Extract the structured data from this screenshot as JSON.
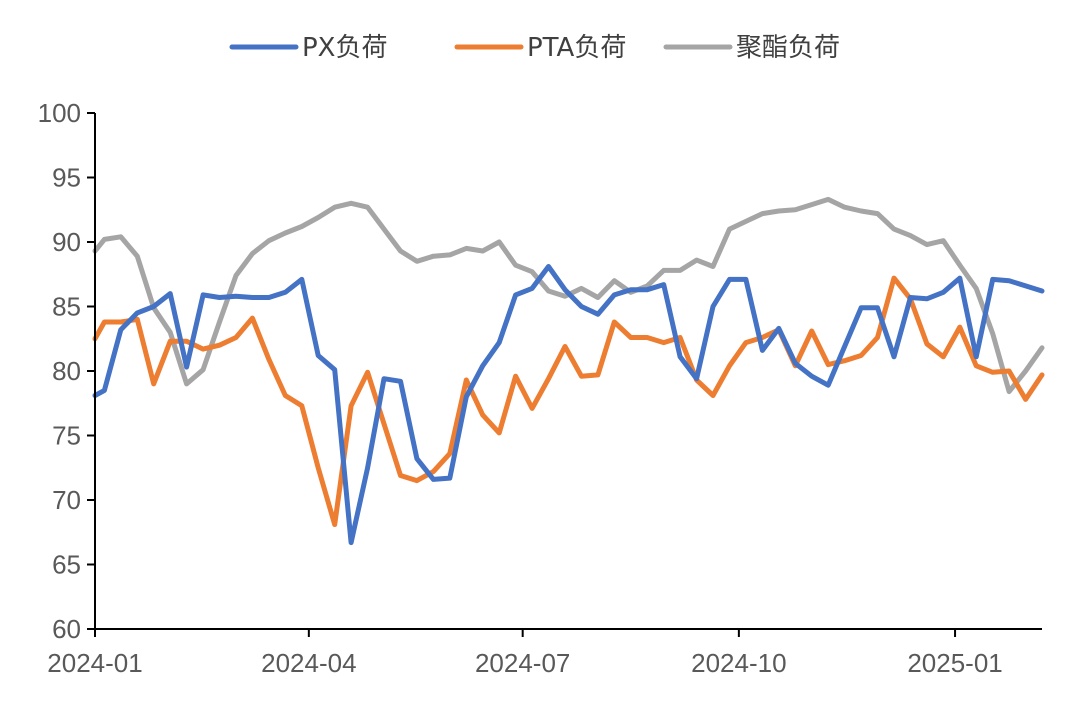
{
  "chart_data": {
    "type": "line",
    "title": "",
    "xlabel": "",
    "ylabel": "",
    "ylim": [
      60,
      100
    ],
    "yticks": [
      60,
      65,
      70,
      75,
      80,
      85,
      90,
      95,
      100
    ],
    "xlim": [
      "2024-01-01",
      "2025-02-07"
    ],
    "xticks": [
      "2024-01",
      "2024-04",
      "2024-07",
      "2024-10",
      "2025-01"
    ],
    "grid": false,
    "legend": "top",
    "x": [
      "2024-01-01",
      "2024-01-05",
      "2024-01-12",
      "2024-01-19",
      "2024-01-26",
      "2024-02-02",
      "2024-02-09",
      "2024-02-16",
      "2024-02-23",
      "2024-03-01",
      "2024-03-08",
      "2024-03-15",
      "2024-03-22",
      "2024-03-29",
      "2024-04-05",
      "2024-04-12",
      "2024-04-19",
      "2024-04-26",
      "2024-05-03",
      "2024-05-10",
      "2024-05-17",
      "2024-05-24",
      "2024-05-31",
      "2024-06-07",
      "2024-06-14",
      "2024-06-21",
      "2024-06-28",
      "2024-07-05",
      "2024-07-12",
      "2024-07-19",
      "2024-07-26",
      "2024-08-02",
      "2024-08-09",
      "2024-08-16",
      "2024-08-23",
      "2024-08-30",
      "2024-09-06",
      "2024-09-13",
      "2024-09-20",
      "2024-09-27",
      "2024-10-04",
      "2024-10-11",
      "2024-10-18",
      "2024-10-25",
      "2024-11-01",
      "2024-11-08",
      "2024-11-15",
      "2024-11-22",
      "2024-11-29",
      "2024-12-06",
      "2024-12-13",
      "2024-12-20",
      "2024-12-27",
      "2025-01-03",
      "2025-01-10",
      "2025-01-17",
      "2025-01-24",
      "2025-01-31",
      "2025-02-07"
    ],
    "series": [
      {
        "name": "PX负荷",
        "color": "#4472C4",
        "values": [
          78.1,
          78.5,
          83.2,
          84.5,
          85.0,
          86.0,
          80.3,
          85.9,
          85.7,
          85.8,
          85.7,
          85.7,
          86.1,
          87.1,
          81.2,
          80.1,
          66.7,
          72.5,
          79.4,
          79.2,
          73.2,
          71.6,
          71.7,
          78.0,
          80.4,
          82.2,
          85.9,
          86.4,
          88.1,
          86.3,
          85.0,
          84.4,
          85.9,
          86.3,
          86.3,
          86.7,
          81.1,
          79.4,
          85.0,
          87.1,
          87.1,
          81.6,
          83.3,
          80.6,
          79.6,
          78.9,
          81.9,
          84.9,
          84.9,
          81.1,
          85.7,
          85.6,
          86.1,
          87.2,
          81.1,
          87.1,
          87.0,
          86.6,
          86.2
        ]
      },
      {
        "name": "PTA负荷",
        "color": "#ED7D31",
        "values": [
          82.5,
          83.8,
          83.8,
          84.0,
          79.0,
          82.3,
          82.3,
          81.7,
          82.0,
          82.6,
          84.1,
          80.9,
          78.1,
          77.3,
          72.5,
          68.1,
          77.3,
          79.9,
          75.9,
          71.9,
          71.5,
          72.2,
          73.6,
          79.3,
          76.6,
          75.2,
          79.6,
          77.1,
          79.4,
          81.9,
          79.6,
          79.7,
          83.8,
          82.6,
          82.6,
          82.2,
          82.6,
          79.3,
          78.1,
          80.4,
          82.2,
          82.6,
          83.2,
          80.4,
          83.1,
          80.5,
          80.8,
          81.2,
          82.6,
          87.2,
          85.6,
          82.1,
          81.1,
          83.4,
          80.4,
          79.9,
          80.0,
          77.8,
          79.7
        ]
      },
      {
        "name": "聚酯负荷",
        "color": "#A5A5A5",
        "values": [
          89.3,
          90.2,
          90.4,
          88.9,
          84.9,
          83.0,
          79.0,
          80.1,
          83.8,
          87.4,
          89.1,
          90.1,
          90.7,
          91.2,
          91.9,
          92.7,
          93.0,
          92.7,
          91.0,
          89.3,
          88.5,
          88.9,
          89.0,
          89.5,
          89.3,
          90.0,
          88.2,
          87.7,
          86.2,
          85.8,
          86.4,
          85.7,
          87.0,
          86.1,
          86.6,
          87.8,
          87.8,
          88.6,
          88.1,
          91.0,
          91.6,
          92.2,
          92.4,
          92.5,
          92.9,
          93.3,
          92.7,
          92.4,
          92.2,
          91.0,
          90.5,
          89.8,
          90.1,
          88.2,
          86.4,
          82.9,
          78.4,
          80.0,
          81.8
        ]
      }
    ]
  }
}
